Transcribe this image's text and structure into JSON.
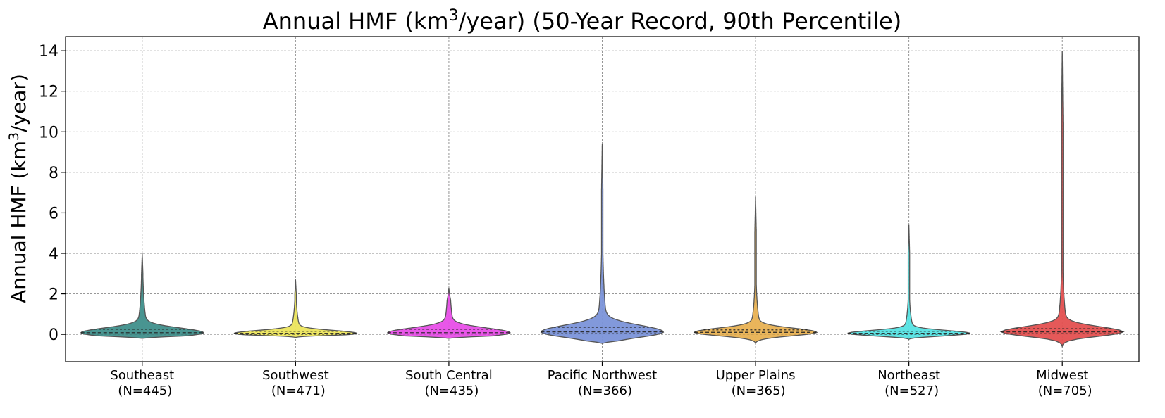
{
  "chart_data": {
    "type": "violin",
    "title": {
      "pre": "Annual HMF (km",
      "sup": "3",
      "post": "/year) (50-Year Record, 90th Percentile)"
    },
    "ylabel": {
      "pre": "Annual HMF (km",
      "sup": "3",
      "post": "/year)"
    },
    "ylim": [
      -1.35,
      14.7
    ],
    "yticks": [
      0,
      2,
      4,
      6,
      8,
      10,
      12,
      14
    ],
    "grid": true,
    "categories": [
      {
        "name": "Southeast",
        "n_label": "(N=445)",
        "color": "#3f8f8b",
        "min": -0.2,
        "max": 4.0,
        "median": 0.08,
        "q1": 0.02,
        "q3": 0.25
      },
      {
        "name": "Southwest",
        "n_label": "(N=471)",
        "color": "#ece55c",
        "min": -0.15,
        "max": 2.7,
        "median": 0.05,
        "q1": 0.01,
        "q3": 0.15
      },
      {
        "name": "South Central",
        "n_label": "(N=435)",
        "color": "#e84ee8",
        "min": -0.2,
        "max": 2.3,
        "median": 0.08,
        "q1": 0.02,
        "q3": 0.25
      },
      {
        "name": "Pacific Northwest",
        "n_label": "(N=366)",
        "color": "#7b93d9",
        "min": -0.45,
        "max": 9.4,
        "median": 0.12,
        "q1": 0.03,
        "q3": 0.35
      },
      {
        "name": "Upper Plains",
        "n_label": "(N=365)",
        "color": "#e8b152",
        "min": -0.45,
        "max": 6.8,
        "median": 0.1,
        "q1": 0.02,
        "q3": 0.22
      },
      {
        "name": "Northeast",
        "n_label": "(N=527)",
        "color": "#55e3e3",
        "min": -0.25,
        "max": 5.4,
        "median": 0.05,
        "q1": 0.01,
        "q3": 0.15
      },
      {
        "name": "Midwest",
        "n_label": "(N=705)",
        "color": "#e45050",
        "min": -0.6,
        "max": 14.0,
        "median": 0.12,
        "q1": 0.03,
        "q3": 0.28
      }
    ]
  }
}
